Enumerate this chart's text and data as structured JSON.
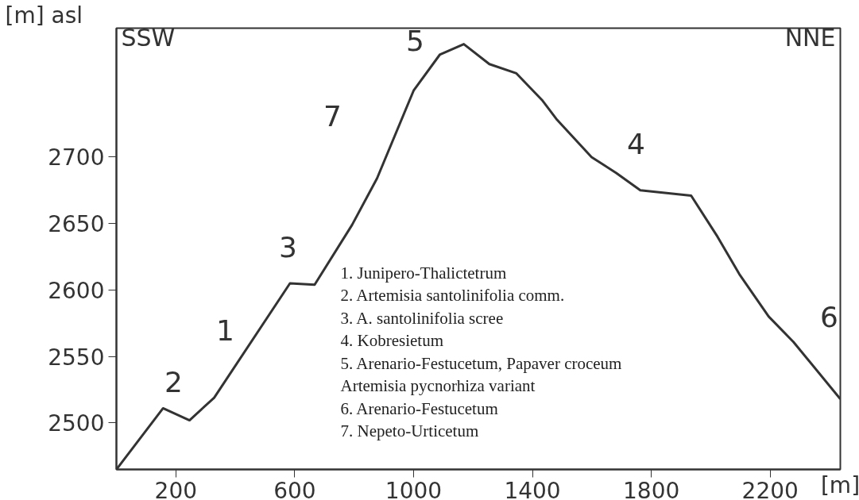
{
  "chart_data": {
    "type": "line",
    "ylabel": "[m] asl",
    "xlabel": "[m]",
    "x": [
      0,
      157,
      246,
      329,
      584,
      667,
      793,
      877,
      1000,
      1088,
      1169,
      1255,
      1346,
      1432,
      1483,
      1599,
      1682,
      1763,
      1934,
      2023,
      2096,
      2195,
      2278,
      2436
    ],
    "series": [
      {
        "color": "#333333",
        "values": [
          2465,
          2511,
          2502,
          2519,
          2605,
          2604,
          2649,
          2684,
          2750,
          2777,
          2785,
          2770,
          2763,
          2743,
          2728,
          2700,
          2688,
          2675,
          2671,
          2640,
          2612,
          2580,
          2561,
          2518
        ]
      }
    ],
    "xlim": [
      0,
      2436
    ],
    "ylim": [
      2465,
      2797
    ],
    "xticks": [
      200,
      600,
      1000,
      1400,
      1800,
      2200
    ],
    "yticks": [
      2500,
      2550,
      2600,
      2650,
      2700
    ],
    "grid": false,
    "marker": "none",
    "line_style": "solid",
    "annotations": [
      "SSW",
      "NNE",
      "1",
      "2",
      "3",
      "4",
      "5",
      "6",
      "7",
      "1. Junipero-Thalictetrum",
      "2. Artemisia santolinifolia comm.",
      "3. A. santolinifolia scree",
      "4. Kobresietum",
      "5. Arenario-Festucetum, Papaver croceum",
      "   Artemisia pycnorhiza variant",
      "6. Arenario-Festucetum",
      "7. Nepeto-Urticetum"
    ]
  }
}
